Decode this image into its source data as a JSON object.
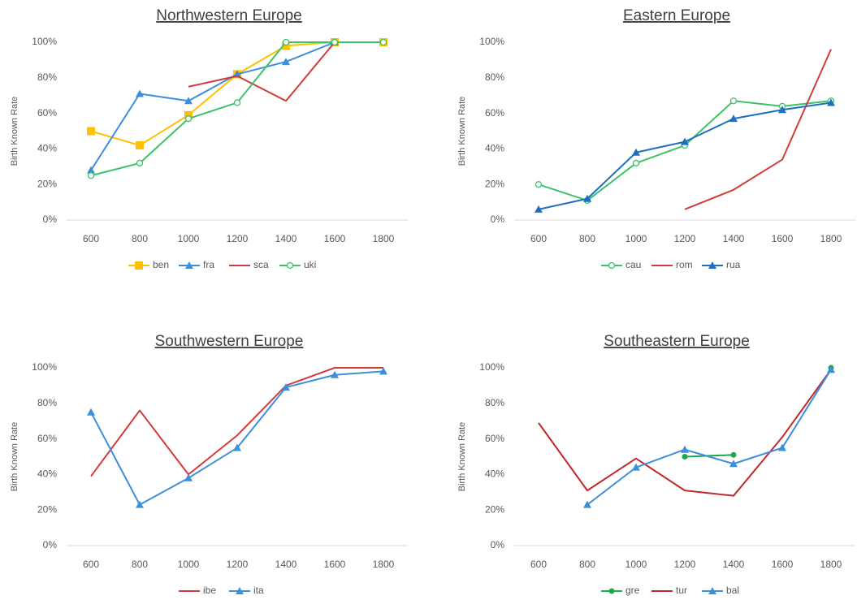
{
  "chart_data": [
    {
      "type": "line",
      "title": "Northwestern Europe",
      "y_label": "Birth Known Rate",
      "categories": [
        "600",
        "800",
        "1000",
        "1200",
        "1400",
        "1600",
        "1800"
      ],
      "ylim": [
        0,
        100
      ],
      "yticks": [
        {
          "value": 0,
          "label": "0%"
        },
        {
          "value": 20,
          "label": "20%"
        },
        {
          "value": 40,
          "label": "40%"
        },
        {
          "value": 60,
          "label": "60%"
        },
        {
          "value": 80,
          "label": "80%"
        },
        {
          "value": 100,
          "label": "100%"
        }
      ],
      "grid": false,
      "series": [
        {
          "name": "ben",
          "color": "#ffc000",
          "marker": "square",
          "values": [
            50,
            42,
            59,
            82,
            98,
            100,
            100
          ]
        },
        {
          "name": "fra",
          "color": "#3d8fd9",
          "marker": "triangle",
          "values": [
            28,
            71,
            67,
            82,
            89,
            100,
            null
          ]
        },
        {
          "name": "sca",
          "color": "#d13b3b",
          "marker": "none",
          "values": [
            null,
            null,
            75,
            81,
            67,
            100,
            null
          ]
        },
        {
          "name": "uki",
          "color": "#3cc36a",
          "marker": "circle-open",
          "values": [
            25,
            32,
            57,
            66,
            100,
            100,
            100
          ]
        }
      ]
    },
    {
      "type": "line",
      "title": "Eastern Europe",
      "y_label": "Birth Known Rate",
      "categories": [
        "600",
        "800",
        "1000",
        "1200",
        "1400",
        "1600",
        "1800"
      ],
      "ylim": [
        0,
        100
      ],
      "yticks": [
        {
          "value": 0,
          "label": "0%"
        },
        {
          "value": 20,
          "label": "20%"
        },
        {
          "value": 40,
          "label": "40%"
        },
        {
          "value": 60,
          "label": "60%"
        },
        {
          "value": 80,
          "label": "80%"
        },
        {
          "value": 100,
          "label": "100%"
        }
      ],
      "grid": false,
      "series": [
        {
          "name": "cau",
          "color": "#3cc36a",
          "marker": "circle-open",
          "values": [
            20,
            11,
            32,
            42,
            67,
            64,
            67
          ]
        },
        {
          "name": "rom",
          "color": "#d13b3b",
          "marker": "none",
          "values": [
            null,
            null,
            null,
            6,
            17,
            34,
            96
          ]
        },
        {
          "name": "rua",
          "color": "#1f6fc0",
          "marker": "triangle",
          "values": [
            6,
            12,
            38,
            44,
            57,
            62,
            66
          ]
        }
      ]
    },
    {
      "type": "line",
      "title": "Southwestern Europe",
      "y_label": "Birth Known Rate",
      "categories": [
        "600",
        "800",
        "1000",
        "1200",
        "1400",
        "1600",
        "1800"
      ],
      "ylim": [
        0,
        100
      ],
      "yticks": [
        {
          "value": 0,
          "label": "0%"
        },
        {
          "value": 20,
          "label": "20%"
        },
        {
          "value": 40,
          "label": "40%"
        },
        {
          "value": 60,
          "label": "60%"
        },
        {
          "value": 80,
          "label": "80%"
        },
        {
          "value": 100,
          "label": "100%"
        }
      ],
      "grid": false,
      "series": [
        {
          "name": "ibe",
          "color": "#d13b3b",
          "marker": "none",
          "values": [
            39,
            76,
            40,
            62,
            90,
            100,
            100
          ]
        },
        {
          "name": "ita",
          "color": "#3d8fd9",
          "marker": "triangle",
          "values": [
            75,
            23,
            38,
            55,
            89,
            96,
            98
          ]
        }
      ]
    },
    {
      "type": "line",
      "title": "Southeastern Europe",
      "y_label": "Birth Known Rate",
      "categories": [
        "600",
        "800",
        "1000",
        "1200",
        "1400",
        "1600",
        "1800"
      ],
      "ylim": [
        0,
        100
      ],
      "yticks": [
        {
          "value": 0,
          "label": "0%"
        },
        {
          "value": 20,
          "label": "20%"
        },
        {
          "value": 40,
          "label": "40%"
        },
        {
          "value": 60,
          "label": "60%"
        },
        {
          "value": 80,
          "label": "80%"
        },
        {
          "value": 100,
          "label": "100%"
        }
      ],
      "grid": false,
      "series": [
        {
          "name": "gre",
          "color": "#1aaa4a",
          "marker": "circle",
          "values": [
            null,
            null,
            null,
            50,
            51,
            null,
            100
          ]
        },
        {
          "name": "tur",
          "color": "#c0282d",
          "marker": "none",
          "values": [
            69,
            31,
            49,
            31,
            28,
            61,
            99
          ]
        },
        {
          "name": "bal",
          "color": "#3d8fd9",
          "marker": "triangle",
          "values": [
            null,
            23,
            44,
            54,
            46,
            55,
            99
          ]
        }
      ]
    }
  ]
}
